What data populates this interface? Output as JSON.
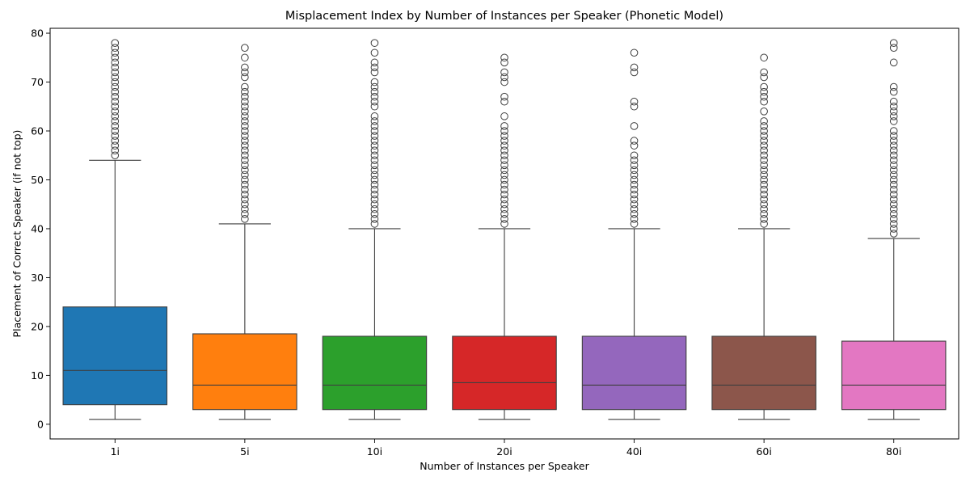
{
  "chart_data": {
    "type": "box",
    "title": "Misplacement Index by Number of Instances per Speaker (Phonetic Model)",
    "xlabel": "Number of Instances per Speaker",
    "ylabel": "Placement of Correct Speaker (if not top)",
    "ylim": [
      -3,
      81
    ],
    "yticks": [
      0,
      10,
      20,
      30,
      40,
      50,
      60,
      70,
      80
    ],
    "grid": false,
    "categories": [
      "1i",
      "5i",
      "10i",
      "20i",
      "40i",
      "60i",
      "80i"
    ],
    "colors": [
      "#1f77b4",
      "#ff7f0e",
      "#2ca02c",
      "#d62728",
      "#9467bd",
      "#8c564b",
      "#e377c2"
    ],
    "series": [
      {
        "category": "1i",
        "min": 1,
        "q1": 4,
        "median": 11,
        "q3": 24,
        "whisker_high": 54,
        "outliers": [
          55,
          56,
          57,
          58,
          59,
          60,
          61,
          62,
          63,
          64,
          65,
          66,
          67,
          68,
          69,
          70,
          71,
          72,
          73,
          74,
          75,
          76,
          77,
          78
        ]
      },
      {
        "category": "5i",
        "min": 1,
        "q1": 3,
        "median": 8,
        "q3": 18.5,
        "whisker_high": 41,
        "outliers": [
          42,
          43,
          44,
          45,
          46,
          47,
          48,
          49,
          50,
          51,
          52,
          53,
          54,
          55,
          56,
          57,
          58,
          59,
          60,
          61,
          62,
          63,
          64,
          65,
          66,
          67,
          68,
          69,
          71,
          72,
          73,
          75,
          77
        ]
      },
      {
        "category": "10i",
        "min": 1,
        "q1": 3,
        "median": 8,
        "q3": 18,
        "whisker_high": 40,
        "outliers": [
          41,
          42,
          43,
          44,
          45,
          46,
          47,
          48,
          49,
          50,
          51,
          52,
          53,
          54,
          55,
          56,
          57,
          58,
          59,
          60,
          61,
          62,
          63,
          65,
          66,
          67,
          68,
          69,
          70,
          72,
          73,
          74,
          76,
          78
        ]
      },
      {
        "category": "20i",
        "min": 1,
        "q1": 3,
        "median": 8.5,
        "q3": 18,
        "whisker_high": 40,
        "outliers": [
          41,
          42,
          43,
          44,
          45,
          46,
          47,
          48,
          49,
          50,
          51,
          52,
          53,
          54,
          55,
          56,
          57,
          58,
          59,
          60,
          61,
          63,
          66,
          67,
          70,
          71,
          72,
          74,
          75
        ]
      },
      {
        "category": "40i",
        "min": 1,
        "q1": 3,
        "median": 8,
        "q3": 18,
        "whisker_high": 40,
        "outliers": [
          41,
          42,
          43,
          44,
          45,
          46,
          47,
          48,
          49,
          50,
          51,
          52,
          53,
          54,
          55,
          57,
          58,
          61,
          65,
          66,
          72,
          73,
          76
        ]
      },
      {
        "category": "60i",
        "min": 1,
        "q1": 3,
        "median": 8,
        "q3": 18,
        "whisker_high": 40,
        "outliers": [
          41,
          42,
          43,
          44,
          45,
          46,
          47,
          48,
          49,
          50,
          51,
          52,
          53,
          54,
          55,
          56,
          57,
          58,
          59,
          60,
          61,
          62,
          64,
          66,
          67,
          68,
          69,
          71,
          72,
          75
        ]
      },
      {
        "category": "80i",
        "min": 1,
        "q1": 3,
        "median": 8,
        "q3": 17,
        "whisker_high": 38,
        "outliers": [
          39,
          40,
          41,
          42,
          43,
          44,
          45,
          46,
          47,
          48,
          49,
          50,
          51,
          52,
          53,
          54,
          55,
          56,
          57,
          58,
          59,
          60,
          62,
          63,
          64,
          65,
          66,
          68,
          69,
          74,
          77,
          78
        ]
      }
    ]
  }
}
